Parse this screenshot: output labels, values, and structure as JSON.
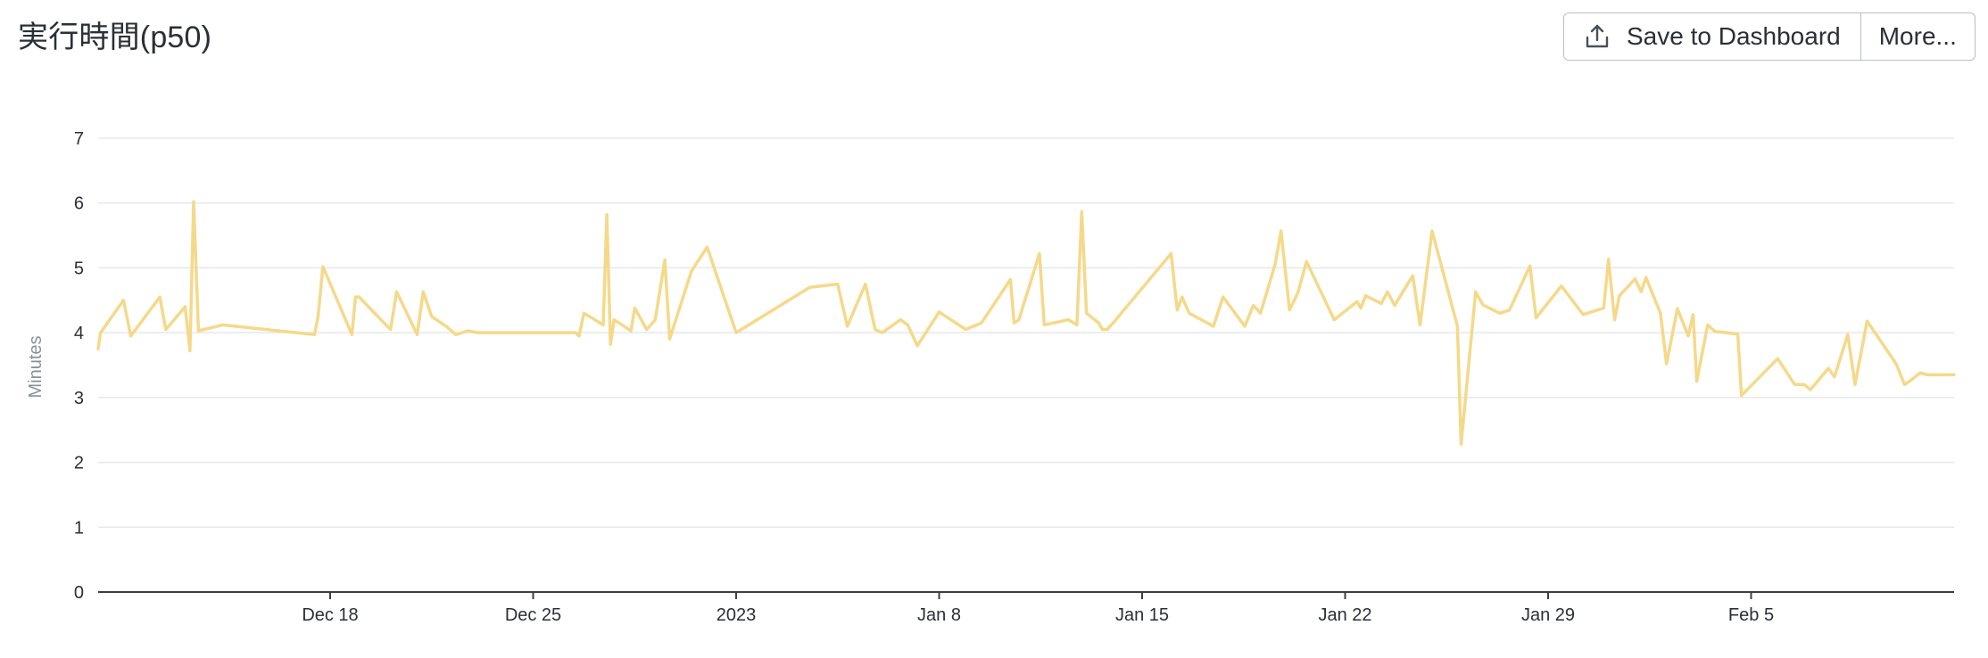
{
  "header": {
    "title": "実行時間(p50)",
    "save_label": "Save to Dashboard",
    "more_label": "More...",
    "save_icon": "upload-icon"
  },
  "chart_data": {
    "type": "line",
    "title": "実行時間(p50)",
    "xlabel": "",
    "ylabel": "Minutes",
    "ylim": [
      0,
      7
    ],
    "yticks": [
      0,
      1,
      2,
      3,
      4,
      5,
      6,
      7
    ],
    "xlim": [
      "2022-12-10",
      "2023-02-12"
    ],
    "xticks": [
      {
        "date": "2022-12-18",
        "label": "Dec 18"
      },
      {
        "date": "2022-12-25",
        "label": "Dec 25"
      },
      {
        "date": "2023-01-01",
        "label": "2023"
      },
      {
        "date": "2023-01-08",
        "label": "Jan 8"
      },
      {
        "date": "2023-01-15",
        "label": "Jan 15"
      },
      {
        "date": "2023-01-22",
        "label": "Jan 22"
      },
      {
        "date": "2023-01-29",
        "label": "Jan 29"
      },
      {
        "date": "2023-02-05",
        "label": "Feb 5"
      }
    ],
    "grid": true,
    "legend": "none",
    "line_color": "#f5d98a",
    "axis_color": "#3a3f47",
    "grid_color": "#e6e8eb",
    "series": [
      {
        "x": [
          "2022-12-10 00:00",
          "2022-12-10 02:00",
          "2022-12-10 21:00",
          "2022-12-11 03:00",
          "2022-12-12 03:00",
          "2022-12-12 08:00",
          "2022-12-13 00:00",
          "2022-12-13 04:00",
          "2022-12-13 07:00",
          "2022-12-13 11:00",
          "2022-12-14 07:00",
          "2022-12-17 11:00",
          "2022-12-17 14:00",
          "2022-12-17 18:00",
          "2022-12-18 18:00",
          "2022-12-18 21:00",
          "2022-12-19 00:00",
          "2022-12-19 18:00",
          "2022-12-20 02:00",
          "2022-12-20 07:00",
          "2022-12-21 00:00",
          "2022-12-21 05:00",
          "2022-12-21 12:00",
          "2022-12-22 00:00",
          "2022-12-22 08:00",
          "2022-12-22 18:00",
          "2022-12-23 02:00",
          "2022-12-26 11:00",
          "2022-12-26 14:00",
          "2022-12-26 18:00",
          "2022-12-27 10:00",
          "2022-12-27 13:00",
          "2022-12-27 16:00",
          "2022-12-27 19:00",
          "2022-12-28 09:00",
          "2022-12-28 12:00",
          "2022-12-28 22:00",
          "2022-12-29 05:00",
          "2022-12-29 13:00",
          "2022-12-29 17:00",
          "2022-12-30 11:00",
          "2022-12-31 00:00",
          "2023-01-01 00:00",
          "2023-01-03 13:00",
          "2023-01-04 12:00",
          "2023-01-04 20:00",
          "2023-01-05 11:00",
          "2023-01-05 19:00",
          "2023-01-06 01:00",
          "2023-01-06 16:00",
          "2023-01-06 22:00",
          "2023-01-07 06:00",
          "2023-01-08 00:00",
          "2023-01-08 22:00",
          "2023-01-09 11:00",
          "2023-01-10 11:00",
          "2023-01-10 14:00",
          "2023-01-10 18:00",
          "2023-01-11 11:00",
          "2023-01-11 15:00",
          "2023-01-12 11:00",
          "2023-01-12 18:00",
          "2023-01-12 22:00",
          "2023-01-13 02:00",
          "2023-01-13 12:00",
          "2023-01-13 15:00",
          "2023-01-13 19:00",
          "2023-01-14 00:00",
          "2023-01-16 00:00",
          "2023-01-16 05:00",
          "2023-01-16 09:00",
          "2023-01-16 15:00",
          "2023-01-17 11:00",
          "2023-01-17 19:00",
          "2023-01-18 13:00",
          "2023-01-18 20:00",
          "2023-01-19 02:00",
          "2023-01-19 14:00",
          "2023-01-19 19:00",
          "2023-01-20 02:00",
          "2023-01-20 09:00",
          "2023-01-20 16:00",
          "2023-01-21 15:00",
          "2023-01-22 10:00",
          "2023-01-22 13:00",
          "2023-01-22 17:00",
          "2023-01-23 06:00",
          "2023-01-23 11:00",
          "2023-01-23 17:00",
          "2023-01-24 08:00",
          "2023-01-24 14:00",
          "2023-01-25 00:00",
          "2023-01-25 21:00",
          "2023-01-26 00:00",
          "2023-01-26 12:00",
          "2023-01-26 18:00",
          "2023-01-27 08:00",
          "2023-01-27 16:00",
          "2023-01-28 09:00",
          "2023-01-28 14:00",
          "2023-01-29 11:00",
          "2023-01-30 05:00",
          "2023-01-30 22:00",
          "2023-01-31 02:00",
          "2023-01-31 07:00",
          "2023-01-31 11:00",
          "2023-02-01 00:00",
          "2023-02-01 05:00",
          "2023-02-01 09:00",
          "2023-02-01 21:00",
          "2023-02-02 02:00",
          "2023-02-02 11:00",
          "2023-02-02 20:00",
          "2023-02-03 00:00",
          "2023-02-03 03:00",
          "2023-02-03 12:00",
          "2023-02-03 18:00",
          "2023-02-04 13:00",
          "2023-02-04 16:00",
          "2023-02-05 22:00",
          "2023-02-06 12:00",
          "2023-02-06 20:00",
          "2023-02-07 01:00",
          "2023-02-07 16:00",
          "2023-02-07 21:00",
          "2023-02-08 08:00",
          "2023-02-08 14:00",
          "2023-02-09 00:00",
          "2023-02-10 00:00",
          "2023-02-10 07:00",
          "2023-02-10 11:00",
          "2023-02-10 20:00",
          "2023-02-11 02:00",
          "2023-02-11 19:00",
          "2023-02-12 00:00"
        ],
        "values": [
          3.75,
          4.0,
          4.5,
          3.95,
          4.55,
          4.05,
          4.4,
          3.72,
          6.02,
          4.03,
          4.12,
          3.97,
          4.25,
          5.02,
          3.97,
          4.55,
          4.55,
          4.2,
          4.05,
          4.63,
          3.97,
          4.63,
          4.25,
          4.1,
          3.97,
          4.03,
          4.0,
          4.0,
          3.95,
          4.3,
          4.12,
          5.82,
          3.82,
          4.2,
          4.03,
          4.38,
          4.05,
          4.2,
          5.12,
          3.9,
          4.95,
          5.32,
          4.0,
          4.7,
          4.75,
          4.1,
          4.75,
          4.05,
          4.0,
          4.2,
          4.12,
          3.8,
          4.32,
          4.05,
          4.15,
          4.82,
          4.15,
          4.2,
          5.22,
          4.12,
          4.2,
          4.12,
          5.87,
          4.3,
          4.15,
          4.05,
          4.05,
          4.15,
          5.22,
          4.35,
          4.55,
          4.3,
          4.1,
          4.55,
          4.1,
          4.42,
          4.3,
          5.05,
          5.57,
          4.35,
          4.62,
          5.1,
          4.2,
          4.48,
          4.38,
          4.57,
          4.45,
          4.63,
          4.42,
          4.88,
          4.12,
          5.57,
          4.1,
          2.28,
          4.63,
          4.43,
          4.3,
          4.35,
          5.03,
          4.23,
          4.72,
          4.28,
          4.38,
          5.13,
          4.2,
          4.57,
          4.83,
          4.63,
          4.85,
          4.3,
          3.52,
          4.37,
          3.95,
          4.28,
          3.25,
          4.12,
          4.02,
          3.98,
          3.03,
          3.6,
          3.2,
          3.2,
          3.12,
          3.45,
          3.32,
          3.97,
          3.2,
          4.18,
          3.52,
          3.2,
          3.25,
          3.38,
          3.35,
          3.35,
          3.35
        ]
      }
    ]
  }
}
